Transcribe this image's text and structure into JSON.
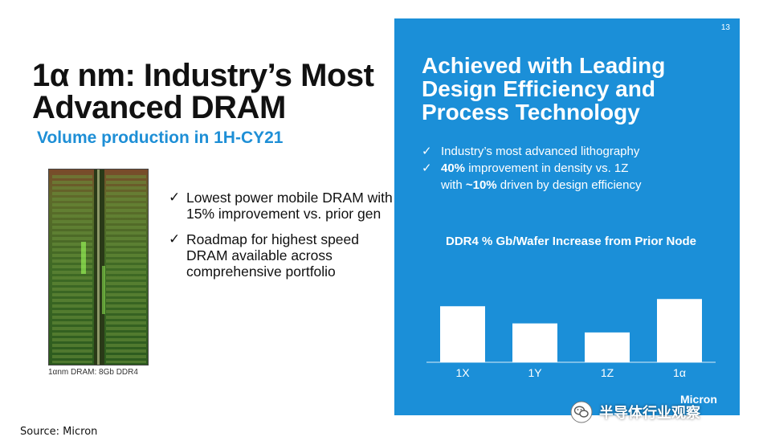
{
  "slide": {
    "title_line1": "1α nm: Industry’s Most",
    "title_line2": "Advanced DRAM",
    "subtitle": "Volume production in 1H-CY21",
    "die_caption": "1αnm DRAM: 8Gb DDR4",
    "bullets": [
      {
        "check": "✓",
        "text": "Lowest power mobile DRAM with 15% improvement vs. prior gen"
      },
      {
        "check": "✓",
        "text": "Roadmap for highest speed DRAM available across comprehensive portfolio"
      }
    ],
    "source": "Source: Micron"
  },
  "panel": {
    "page_number": "13",
    "title": "Achieved with Leading Design Efficiency and Process Technology",
    "bullets": [
      {
        "check": "✓",
        "pre": "Industry’s most advanced lithography",
        "bold": "",
        "post": ""
      },
      {
        "check": "✓",
        "pre": "",
        "bold": "40%",
        "post": " improvement in density vs. 1Z"
      },
      {
        "check": "",
        "pre": "with ",
        "bold": "~10%",
        "post": " driven by design efficiency"
      }
    ],
    "brand": "Micron",
    "colors": {
      "panel": "#1b8fd8",
      "bars": "#ffffff"
    }
  },
  "chart_data": {
    "type": "bar",
    "title": "DDR4 % Gb/Wafer Increase from Prior Node",
    "categories": [
      "1X",
      "1Y",
      "1Z",
      "1α"
    ],
    "values": [
      62,
      43,
      33,
      70
    ],
    "ylim": [
      0,
      80
    ],
    "grid": false,
    "y_axis_labels": false
  },
  "watermark": {
    "icon": "wechat-icon",
    "text": "半导体行业观察"
  }
}
